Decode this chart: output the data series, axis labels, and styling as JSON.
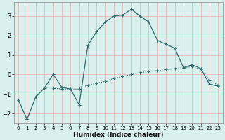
{
  "xlabel": "Humidex (Indice chaleur)",
  "background_color": "#d8f0ee",
  "grid_color": "#e8b0b0",
  "line_color": "#2d6b6b",
  "xlim": [
    -0.5,
    23.5
  ],
  "ylim": [
    -2.5,
    3.7
  ],
  "x_ticks": [
    0,
    1,
    2,
    3,
    4,
    5,
    6,
    7,
    8,
    9,
    10,
    11,
    12,
    13,
    14,
    15,
    16,
    17,
    18,
    19,
    20,
    21,
    22,
    23
  ],
  "y_ticks": [
    -2,
    -1,
    0,
    1,
    2,
    3
  ],
  "line_dotted_x": [
    0,
    1,
    2,
    3,
    4,
    5,
    6,
    7,
    8,
    9,
    10,
    11,
    12,
    13,
    14,
    15,
    16,
    17,
    18,
    19,
    20,
    21,
    22,
    23
  ],
  "line_dotted_y": [
    -1.3,
    -2.3,
    -1.15,
    -0.7,
    -0.7,
    -0.75,
    -0.75,
    -0.75,
    -0.55,
    -0.45,
    -0.35,
    -0.2,
    -0.1,
    0.0,
    0.1,
    0.15,
    0.2,
    0.25,
    0.3,
    0.35,
    0.4,
    0.25,
    -0.3,
    -0.55
  ],
  "line_solid_x": [
    0,
    1,
    2,
    3,
    4,
    5,
    6,
    7,
    8,
    9,
    10,
    11,
    12,
    13,
    14,
    15,
    16,
    17,
    18,
    19,
    20,
    21,
    22,
    23
  ],
  "line_solid_y": [
    -1.3,
    -2.3,
    -1.15,
    -0.7,
    0.0,
    -0.65,
    -0.75,
    -1.55,
    1.5,
    2.2,
    2.7,
    3.0,
    3.05,
    3.35,
    3.0,
    2.7,
    1.75,
    1.55,
    1.35,
    0.35,
    0.5,
    0.3,
    -0.5,
    -0.6
  ]
}
